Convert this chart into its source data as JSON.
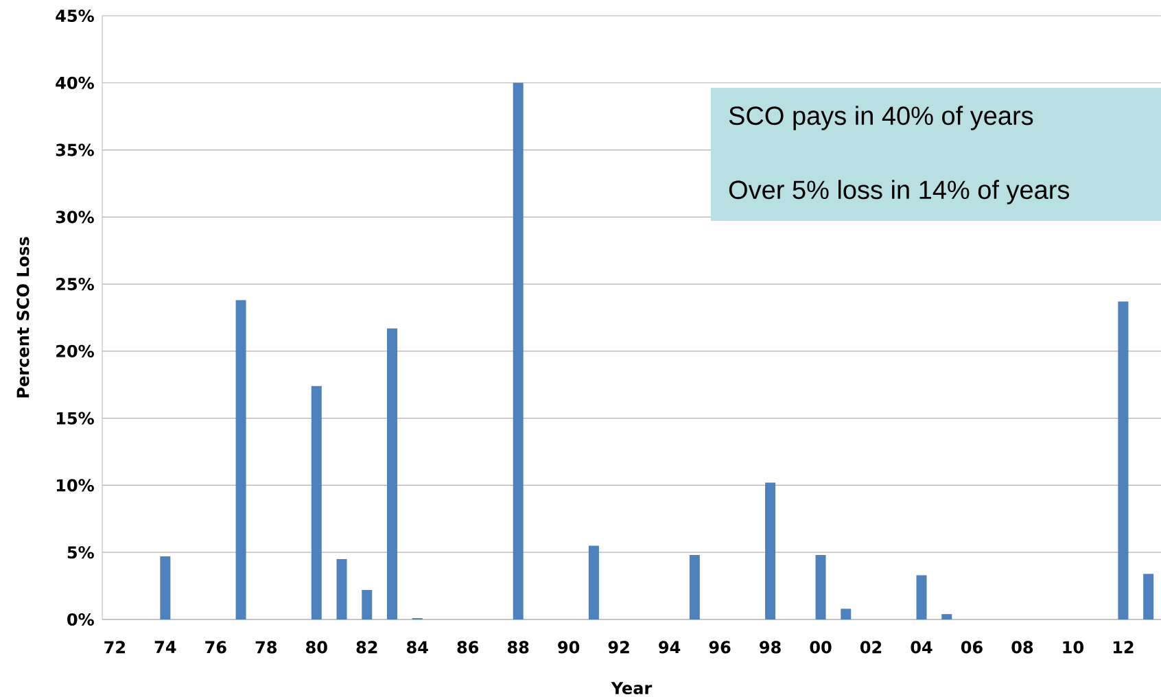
{
  "chart_data": {
    "type": "bar",
    "xlabel": "Year",
    "ylabel": "Percent SCO Loss",
    "categories": [
      "72",
      null,
      "74",
      null,
      "76",
      null,
      "78",
      null,
      "80",
      null,
      "82",
      null,
      "84",
      null,
      "86",
      null,
      "88",
      null,
      "90",
      null,
      "92",
      null,
      "94",
      null,
      "96",
      null,
      "98",
      null,
      "00",
      null,
      "02",
      null,
      "04",
      null,
      "06",
      null,
      "08",
      null,
      "10",
      null,
      "12",
      null
    ],
    "values": [
      0,
      0,
      4.7,
      0,
      0,
      23.8,
      0,
      0,
      17.4,
      4.5,
      2.2,
      21.7,
      0.1,
      0,
      0,
      0,
      40,
      0,
      0,
      5.5,
      0,
      0,
      0,
      4.8,
      0,
      0,
      10.2,
      0,
      4.8,
      0.8,
      0,
      0,
      3.3,
      0.4,
      0,
      0,
      0,
      0,
      0,
      0,
      23.7,
      3.4
    ],
    "color": "#4f81bd",
    "ylim": [
      0,
      45
    ],
    "yticks": [
      {
        "value": 0,
        "label": "0%"
      },
      {
        "value": 5,
        "label": "5%"
      },
      {
        "value": 10,
        "label": "10%"
      },
      {
        "value": 15,
        "label": "15%"
      },
      {
        "value": 20,
        "label": "20%"
      },
      {
        "value": 25,
        "label": "25%"
      },
      {
        "value": 30,
        "label": "30%"
      },
      {
        "value": 35,
        "label": "35%"
      },
      {
        "value": 40,
        "label": "40%"
      },
      {
        "value": 45,
        "label": "45%"
      }
    ],
    "grid": "y",
    "annotations": [
      "SCO pays in 40% of years",
      "Over 5% loss in 14% of years"
    ]
  }
}
